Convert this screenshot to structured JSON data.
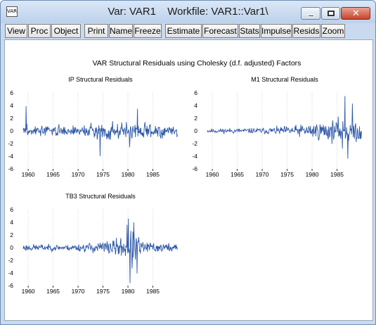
{
  "window": {
    "icon_label": "VAR",
    "title_left": "Var: VAR1",
    "title_right": "Workfile: VAR1::Var1\\"
  },
  "toolbar": {
    "buttons": [
      "View",
      "Proc",
      "Object",
      "Print",
      "Name",
      "Freeze",
      "Estimate",
      "Forecast",
      "Stats",
      "Impulse",
      "Resids",
      "Zoom"
    ]
  },
  "figure_title": "VAR Structural Residuals using Cholesky (d.f. adjusted) Factors",
  "chart_data": [
    {
      "type": "line",
      "title": "IP Structural Residuals",
      "x_ticks": [
        "1960",
        "1965",
        "1970",
        "1975",
        "1980",
        "1985"
      ],
      "y_ticks": [
        6,
        4,
        2,
        0,
        -2,
        -4,
        -6
      ],
      "ylim": [
        -6,
        6
      ],
      "xlim": [
        1959,
        1990
      ],
      "grid": "vertical dotted at x ticks",
      "color": "#2e58a8",
      "x_start": 1959,
      "x_end": 1989.9,
      "series_seed": 3,
      "series_profile": [
        [
          1959,
          0.9
        ],
        [
          1968,
          0.8
        ],
        [
          1974,
          1.2
        ],
        [
          1982,
          1.5
        ],
        [
          1990,
          0.9
        ]
      ],
      "spikes": [
        [
          1959.6,
          3.9
        ],
        [
          1974.4,
          -4.0
        ],
        [
          1980.3,
          -2.6
        ],
        [
          1981.9,
          3.5
        ]
      ]
    },
    {
      "type": "line",
      "title": "M1 Structural Residuals",
      "x_ticks": [
        "1960",
        "1965",
        "1970",
        "1975",
        "1980",
        "1985"
      ],
      "y_ticks": [
        6,
        4,
        2,
        0,
        -2,
        -4,
        -6
      ],
      "ylim": [
        -6,
        6
      ],
      "xlim": [
        1959,
        1990
      ],
      "grid": "vertical dotted at x ticks",
      "color": "#2e58a8",
      "x_start": 1959,
      "x_end": 1989.9,
      "series_seed": 11,
      "series_profile": [
        [
          1959,
          0.35
        ],
        [
          1970,
          0.45
        ],
        [
          1976,
          0.8
        ],
        [
          1980,
          1.3
        ],
        [
          1985,
          1.8
        ],
        [
          1990,
          2.0
        ]
      ],
      "spikes": [
        [
          1986.6,
          5.5
        ],
        [
          1987.2,
          -4.4
        ],
        [
          1988.1,
          4.3
        ],
        [
          1986.1,
          -2.8
        ]
      ]
    },
    {
      "type": "line",
      "title": "TB3 Structural Residuals",
      "x_ticks": [
        "1960",
        "1965",
        "1970",
        "1975",
        "1980",
        "1985"
      ],
      "y_ticks": [
        6,
        4,
        2,
        0,
        -2,
        -4,
        -6
      ],
      "ylim": [
        -6,
        6
      ],
      "xlim": [
        1959,
        1990
      ],
      "grid": "vertical dotted at x ticks",
      "color": "#2e58a8",
      "x_start": 1959,
      "x_end": 1989.9,
      "series_seed": 23,
      "series_profile": [
        [
          1959,
          0.6
        ],
        [
          1967,
          0.45
        ],
        [
          1973,
          0.8
        ],
        [
          1979,
          1.6
        ],
        [
          1980,
          2.8
        ],
        [
          1982,
          2.4
        ],
        [
          1983,
          0.9
        ],
        [
          1990,
          0.7
        ]
      ],
      "spikes": [
        [
          1980.1,
          4.6
        ],
        [
          1980.4,
          -5.6
        ],
        [
          1981.2,
          4.0
        ],
        [
          1981.8,
          -4.1
        ],
        [
          1980.8,
          -3.3
        ],
        [
          1979.8,
          3.6
        ]
      ]
    }
  ]
}
